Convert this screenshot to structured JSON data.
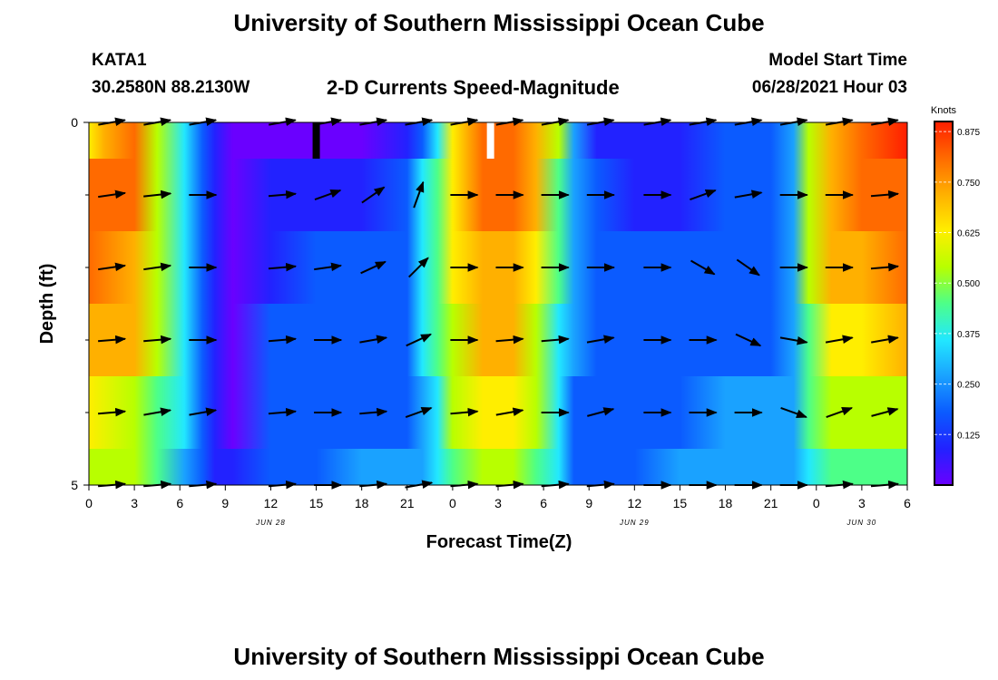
{
  "page": {
    "top_title": "University of Southern Mississippi Ocean Cube",
    "bottom_title": "University of Southern Mississippi Ocean Cube",
    "station_id": "KATA1",
    "station_coords": "30.2580N  88.2130W",
    "model_start_label": "Model Start Time",
    "model_start_value": "06/28/2021 Hour 03"
  },
  "colors": {
    "ramp": [
      "#6a00ff",
      "#2222ff",
      "#0b5bff",
      "#1aa2ff",
      "#22e8ff",
      "#4dff88",
      "#b8ff00",
      "#ffee00",
      "#ffb000",
      "#ff6a00",
      "#ff1e00"
    ],
    "arrow": "#000000",
    "marker_dark": "#000000",
    "marker_light": "#ffffff"
  },
  "chart_data": {
    "type": "heatmap",
    "title": "2-D Currents Speed-Magnitude",
    "xlabel": "Forecast Time(Z)",
    "ylabel": "Depth (ft)",
    "colorbar_label": "Knots",
    "colorbar_range": [
      0.0,
      0.9
    ],
    "colorbar_ticks": [
      "0.875",
      "0.750",
      "0.625",
      "0.500",
      "0.375",
      "0.250",
      "0.125"
    ],
    "colorbar_tick_values": [
      0.875,
      0.75,
      0.625,
      0.5,
      0.375,
      0.25,
      0.125
    ],
    "x_range_hours": [
      0,
      54
    ],
    "x_ticks_hours": [
      0,
      3,
      6,
      9,
      12,
      15,
      18,
      21,
      24,
      27,
      30,
      33,
      36,
      39,
      42,
      45,
      48,
      51,
      54
    ],
    "x_tick_labels": [
      "0",
      "3",
      "6",
      "9",
      "12",
      "15",
      "18",
      "21",
      "0",
      "3",
      "6",
      "9",
      "12",
      "15",
      "18",
      "21",
      "0",
      "3",
      "6"
    ],
    "date_labels": [
      {
        "label": "JUN 28",
        "hour": 12
      },
      {
        "label": "JUN 29",
        "hour": 36
      },
      {
        "label": "JUN 30",
        "hour": 51
      }
    ],
    "y_range_ft": [
      0,
      5
    ],
    "y_tick_labels": [
      {
        "value": 0,
        "label": "0"
      },
      {
        "value": 5,
        "label": "5"
      }
    ],
    "y_minor_ticks_ft": [
      1,
      2,
      3,
      4
    ],
    "depth_bands_ft": [
      [
        0,
        0.5
      ],
      [
        0.5,
        1.5
      ],
      [
        1.5,
        2.5
      ],
      [
        2.5,
        3.5
      ],
      [
        3.5,
        4.5
      ],
      [
        4.5,
        5
      ]
    ],
    "speed_profiles_knots": [
      [
        [
          0,
          0.66
        ],
        [
          1,
          0.75
        ],
        [
          3,
          0.8
        ],
        [
          4.5,
          0.55
        ],
        [
          6.3,
          0.38
        ],
        [
          7.5,
          0.22
        ],
        [
          8.3,
          0.1
        ],
        [
          9.5,
          0.02
        ],
        [
          12,
          0.04
        ],
        [
          15,
          0.02
        ],
        [
          18,
          0.03
        ],
        [
          21,
          0.05
        ],
        [
          22,
          0.2
        ],
        [
          23,
          0.36
        ],
        [
          24,
          0.62
        ],
        [
          26,
          0.82
        ],
        [
          28,
          0.85
        ],
        [
          29.5,
          0.7
        ],
        [
          31,
          0.5
        ],
        [
          32,
          0.26
        ],
        [
          33.5,
          0.12
        ],
        [
          36,
          0.1
        ],
        [
          39,
          0.12
        ],
        [
          42,
          0.14
        ],
        [
          45,
          0.2
        ],
        [
          46.5,
          0.3
        ],
        [
          47.5,
          0.5
        ],
        [
          49,
          0.7
        ],
        [
          51,
          0.85
        ],
        [
          54,
          0.88
        ]
      ],
      [
        [
          0,
          0.8
        ],
        [
          3,
          0.78
        ],
        [
          4.5,
          0.55
        ],
        [
          6.3,
          0.38
        ],
        [
          7.5,
          0.22
        ],
        [
          8.3,
          0.1
        ],
        [
          9.5,
          0.04
        ],
        [
          12,
          0.08
        ],
        [
          15,
          0.1
        ],
        [
          18,
          0.1
        ],
        [
          21,
          0.16
        ],
        [
          22,
          0.32
        ],
        [
          23,
          0.45
        ],
        [
          24,
          0.66
        ],
        [
          26,
          0.8
        ],
        [
          28,
          0.8
        ],
        [
          29.5,
          0.68
        ],
        [
          31,
          0.45
        ],
        [
          32,
          0.26
        ],
        [
          33.5,
          0.14
        ],
        [
          36,
          0.12
        ],
        [
          39,
          0.12
        ],
        [
          42,
          0.14
        ],
        [
          45,
          0.18
        ],
        [
          46.5,
          0.28
        ],
        [
          47.5,
          0.5
        ],
        [
          49,
          0.7
        ],
        [
          51,
          0.8
        ],
        [
          54,
          0.82
        ]
      ],
      [
        [
          0,
          0.78
        ],
        [
          3,
          0.76
        ],
        [
          4.5,
          0.55
        ],
        [
          6.3,
          0.38
        ],
        [
          7.5,
          0.22
        ],
        [
          8.3,
          0.1
        ],
        [
          9.5,
          0.04
        ],
        [
          12,
          0.12
        ],
        [
          15,
          0.14
        ],
        [
          18,
          0.14
        ],
        [
          21,
          0.18
        ],
        [
          22,
          0.34
        ],
        [
          23,
          0.48
        ],
        [
          24,
          0.64
        ],
        [
          26,
          0.76
        ],
        [
          28,
          0.76
        ],
        [
          29.5,
          0.62
        ],
        [
          31,
          0.42
        ],
        [
          32,
          0.25
        ],
        [
          33.5,
          0.14
        ],
        [
          36,
          0.14
        ],
        [
          39,
          0.14
        ],
        [
          42,
          0.15
        ],
        [
          45,
          0.18
        ],
        [
          46.5,
          0.28
        ],
        [
          47.5,
          0.5
        ],
        [
          49,
          0.68
        ],
        [
          51,
          0.76
        ],
        [
          54,
          0.78
        ]
      ],
      [
        [
          0,
          0.72
        ],
        [
          3,
          0.68
        ],
        [
          4.5,
          0.52
        ],
        [
          6.3,
          0.36
        ],
        [
          7.5,
          0.22
        ],
        [
          8.3,
          0.1
        ],
        [
          9.5,
          0.04
        ],
        [
          12,
          0.14
        ],
        [
          15,
          0.16
        ],
        [
          18,
          0.16
        ],
        [
          21,
          0.18
        ],
        [
          22,
          0.32
        ],
        [
          23,
          0.44
        ],
        [
          24,
          0.58
        ],
        [
          26,
          0.7
        ],
        [
          28,
          0.72
        ],
        [
          29.5,
          0.58
        ],
        [
          31,
          0.4
        ],
        [
          32,
          0.25
        ],
        [
          33.5,
          0.16
        ],
        [
          36,
          0.18
        ],
        [
          39,
          0.2
        ],
        [
          42,
          0.22
        ],
        [
          45,
          0.22
        ],
        [
          46.5,
          0.28
        ],
        [
          47.5,
          0.48
        ],
        [
          49,
          0.62
        ],
        [
          51,
          0.66
        ],
        [
          54,
          0.68
        ]
      ],
      [
        [
          0,
          0.62
        ],
        [
          3,
          0.58
        ],
        [
          4.5,
          0.46
        ],
        [
          6.3,
          0.34
        ],
        [
          7.5,
          0.2
        ],
        [
          8.3,
          0.1
        ],
        [
          9.5,
          0.04
        ],
        [
          12,
          0.16
        ],
        [
          15,
          0.2
        ],
        [
          18,
          0.2
        ],
        [
          21,
          0.22
        ],
        [
          22,
          0.3
        ],
        [
          23,
          0.4
        ],
        [
          24,
          0.5
        ],
        [
          26,
          0.6
        ],
        [
          28,
          0.62
        ],
        [
          29.5,
          0.5
        ],
        [
          31,
          0.36
        ],
        [
          32,
          0.22
        ],
        [
          33.5,
          0.18
        ],
        [
          36,
          0.2
        ],
        [
          39,
          0.22
        ],
        [
          42,
          0.24
        ],
        [
          45,
          0.25
        ],
        [
          46.5,
          0.3
        ],
        [
          47.5,
          0.42
        ],
        [
          49,
          0.52
        ],
        [
          51,
          0.56
        ],
        [
          54,
          0.58
        ]
      ],
      [
        [
          0,
          0.56
        ],
        [
          3,
          0.5
        ],
        [
          4.5,
          0.42
        ],
        [
          6.3,
          0.3
        ],
        [
          7.5,
          0.18
        ],
        [
          8.3,
          0.1
        ],
        [
          9.5,
          0.06
        ],
        [
          12,
          0.18
        ],
        [
          15,
          0.22
        ],
        [
          18,
          0.24
        ],
        [
          21,
          0.26
        ],
        [
          22,
          0.3
        ],
        [
          23,
          0.36
        ],
        [
          24,
          0.44
        ],
        [
          26,
          0.52
        ],
        [
          28,
          0.54
        ],
        [
          29.5,
          0.44
        ],
        [
          31,
          0.32
        ],
        [
          32,
          0.2
        ],
        [
          33.5,
          0.18
        ],
        [
          36,
          0.22
        ],
        [
          39,
          0.24
        ],
        [
          42,
          0.26
        ],
        [
          45,
          0.26
        ],
        [
          46.5,
          0.3
        ],
        [
          47.5,
          0.38
        ],
        [
          49,
          0.44
        ],
        [
          51,
          0.46
        ],
        [
          54,
          0.48
        ]
      ]
    ],
    "vector_rows_depth_ft": [
      0,
      1,
      2,
      3,
      4,
      5
    ],
    "vector_times_hours": [
      1.5,
      4.5,
      7.5,
      12.75,
      15.75,
      18.75,
      21.75,
      24.75,
      27.75,
      30.75,
      33.75,
      37.5,
      40.5,
      43.5,
      46.5,
      49.5,
      52.5
    ],
    "vector_directions_deg": [
      [
        10,
        10,
        10,
        10,
        10,
        10,
        10,
        10,
        10,
        10,
        10,
        10,
        10,
        10,
        10,
        10,
        10
      ],
      [
        8,
        6,
        0,
        5,
        20,
        35,
        70,
        0,
        0,
        0,
        0,
        0,
        20,
        10,
        0,
        0,
        5
      ],
      [
        8,
        8,
        0,
        5,
        8,
        25,
        45,
        0,
        0,
        0,
        0,
        0,
        -30,
        -35,
        0,
        0,
        5
      ],
      [
        5,
        5,
        0,
        5,
        0,
        10,
        25,
        0,
        5,
        5,
        10,
        0,
        0,
        -25,
        -10,
        10,
        10
      ],
      [
        5,
        10,
        10,
        5,
        0,
        5,
        20,
        5,
        10,
        0,
        15,
        0,
        0,
        0,
        -20,
        20,
        15
      ],
      [
        5,
        5,
        5,
        5,
        0,
        5,
        10,
        5,
        5,
        5,
        5,
        0,
        0,
        0,
        0,
        5,
        5
      ]
    ],
    "time_markers": [
      {
        "hour": 15,
        "style": "dark"
      },
      {
        "hour": 26.5,
        "style": "light"
      }
    ]
  }
}
